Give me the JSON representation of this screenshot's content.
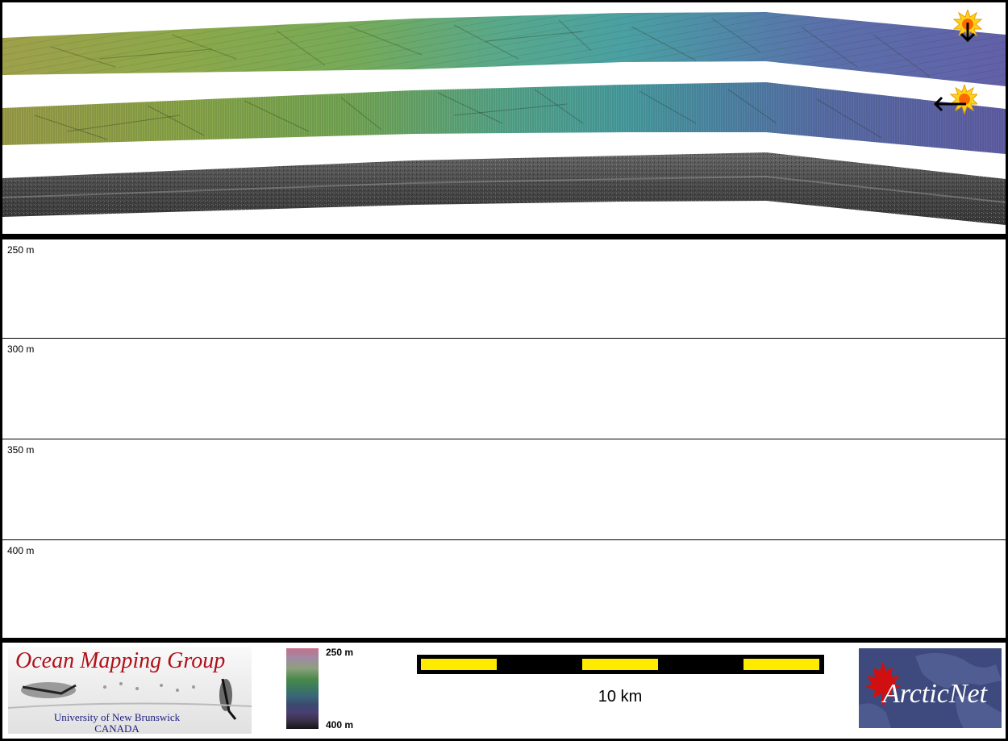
{
  "colors": {
    "background": "#000000",
    "swath_start": "#9ea04a",
    "swath_mid": "#4aa0a2",
    "swath_end": "#6260a8",
    "backscatter": "#5a5a5a",
    "scale_bar_fill": "#ffeb00",
    "logo_red": "#b01018",
    "logo_blue": "#1c1c80",
    "arcticnet_bg": "#3e4a7e"
  },
  "map": {
    "swaths": [
      {
        "name": "shaded-relief-sun-north",
        "type": "colored bathymetry"
      },
      {
        "name": "shaded-relief-sun-east",
        "type": "colored bathymetry"
      },
      {
        "name": "backscatter",
        "type": "grayscale"
      }
    ],
    "sun_markers": [
      {
        "icon": "sun-illumination-icon",
        "arrow": "down"
      },
      {
        "icon": "sun-illumination-icon",
        "arrow": "left"
      }
    ]
  },
  "profile": {
    "depth_labels": [
      "250 m",
      "300 m",
      "350 m",
      "400 m"
    ]
  },
  "footer": {
    "logo": {
      "title": "Ocean Mapping Group",
      "subtitle_1": "University of New Brunswick",
      "subtitle_2": "CANADA"
    },
    "depth_scale": {
      "top_label": "250 m",
      "bottom_label": "400 m"
    },
    "scale_bar": {
      "label": "10 km"
    },
    "partner_logo": {
      "text": "ArcticNet",
      "icon": "maple-leaf-icon"
    }
  }
}
